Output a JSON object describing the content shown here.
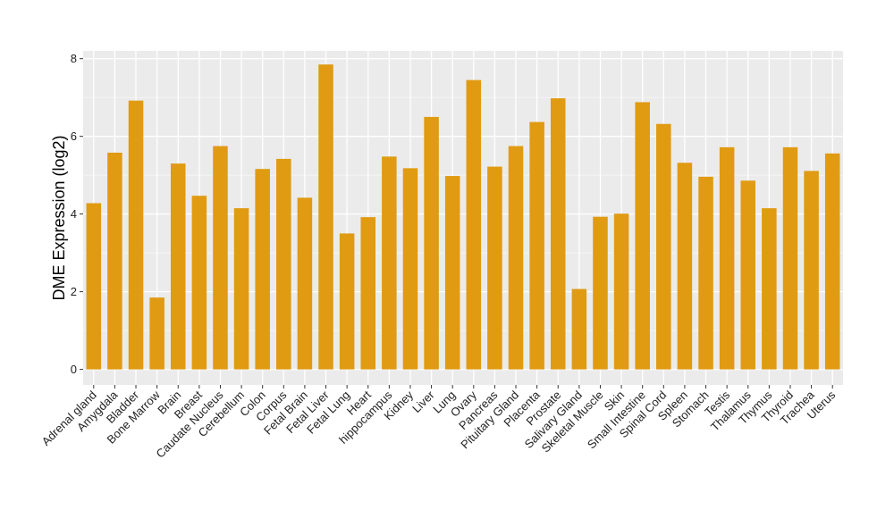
{
  "chart_data": {
    "type": "bar",
    "ylabel": "DME Expression (log2)",
    "xlabel": "",
    "ylim": [
      -0.4,
      8.2
    ],
    "yticks": [
      0,
      2,
      4,
      6,
      8
    ],
    "grid": true,
    "bar_color": "#e09b12",
    "panel_color": "#ebebeb",
    "categories": [
      "Adrenal gland",
      "Amygdala",
      "Bladder",
      "Bone Marrow",
      "Brain",
      "Breast",
      "Caudate Nucleus",
      "Cerebellum",
      "Colon",
      "Corpus",
      "Fetal Brain",
      "Fetal Liver",
      "Fetal Lung",
      "Heart",
      "hippocampus",
      "Kidney",
      "Liver",
      "Lung",
      "Ovary",
      "Pancreas",
      "Pituitary Gland",
      "Placenta",
      "Prostate",
      "Salivary Gland",
      "Skeletal Muscle",
      "Skin",
      "Small Intestine",
      "Spinal Cord",
      "Spleen",
      "Stomach",
      "Testis",
      "Thalamus",
      "Thymus",
      "Thyroid",
      "Trachea",
      "Uterus"
    ],
    "values": [
      4.28,
      5.58,
      6.92,
      1.85,
      5.3,
      4.47,
      5.75,
      4.15,
      5.16,
      5.42,
      4.42,
      7.85,
      3.5,
      3.92,
      5.48,
      5.18,
      6.5,
      4.98,
      7.45,
      5.22,
      5.75,
      6.37,
      6.98,
      2.07,
      3.93,
      4.01,
      6.88,
      6.32,
      5.32,
      4.96,
      5.72,
      4.86,
      4.15,
      5.72,
      5.11,
      5.56
    ]
  }
}
